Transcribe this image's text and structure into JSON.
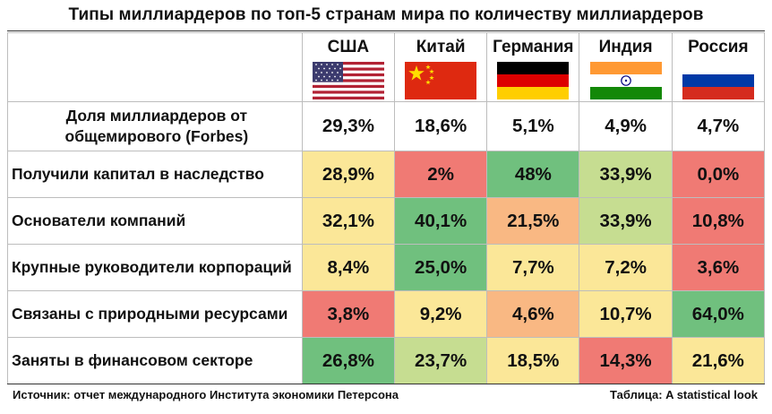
{
  "title": "Типы миллиардеров по топ-5 странам мира по количеству миллиардеров",
  "countries": [
    {
      "name": "США",
      "flag": "us-flag"
    },
    {
      "name": "Китай",
      "flag": "china-flag"
    },
    {
      "name": "Германия",
      "flag": "germany-flag"
    },
    {
      "name": "Индия",
      "flag": "india-flag"
    },
    {
      "name": "Россия",
      "flag": "russia-flag"
    }
  ],
  "colors": {
    "green": "#70c07e",
    "light_green": "#c6dd91",
    "yellow": "#fbe798",
    "orange": "#f9b883",
    "red": "#f07a74",
    "neutral": "#ffffff"
  },
  "chart_data": {
    "type": "table",
    "title": "Типы миллиардеров по топ-5 странам мира по количеству миллиардеров",
    "columns": [
      "США",
      "Китай",
      "Германия",
      "Индия",
      "Россия"
    ],
    "rows": [
      {
        "label": "Доля миллиардеров от общемирового (Forbes)",
        "values": [
          "29,3%",
          "18,6%",
          "5,1%",
          "4,9%",
          "4,7%"
        ],
        "colors": [
          "neutral",
          "neutral",
          "neutral",
          "neutral",
          "neutral"
        ]
      },
      {
        "label": "Получили капитал в наследство",
        "values": [
          "28,9%",
          "2%",
          "48%",
          "33,9%",
          "0,0%"
        ],
        "colors": [
          "yellow",
          "red",
          "green",
          "light_green",
          "red"
        ]
      },
      {
        "label": "Основатели компаний",
        "values": [
          "32,1%",
          "40,1%",
          "21,5%",
          "33,9%",
          "10,8%"
        ],
        "colors": [
          "yellow",
          "green",
          "orange",
          "light_green",
          "red"
        ]
      },
      {
        "label": "Крупные руководители корпораций",
        "values": [
          "8,4%",
          "25,0%",
          "7,7%",
          "7,2%",
          "3,6%"
        ],
        "colors": [
          "yellow",
          "green",
          "yellow",
          "yellow",
          "red"
        ]
      },
      {
        "label": "Связаны с природными ресурсами",
        "values": [
          "3,8%",
          "9,2%",
          "4,6%",
          "10,7%",
          "64,0%"
        ],
        "colors": [
          "red",
          "yellow",
          "orange",
          "yellow",
          "green"
        ]
      },
      {
        "label": "Заняты в финансовом секторе",
        "values": [
          "26,8%",
          "23,7%",
          "18,5%",
          "14,3%",
          "21,6%"
        ],
        "colors": [
          "green",
          "light_green",
          "yellow",
          "red",
          "yellow"
        ]
      }
    ]
  },
  "footer": {
    "source": "Источник: отчет международного Института экономики Петерсона",
    "credit": "Таблица: A statistical look"
  }
}
